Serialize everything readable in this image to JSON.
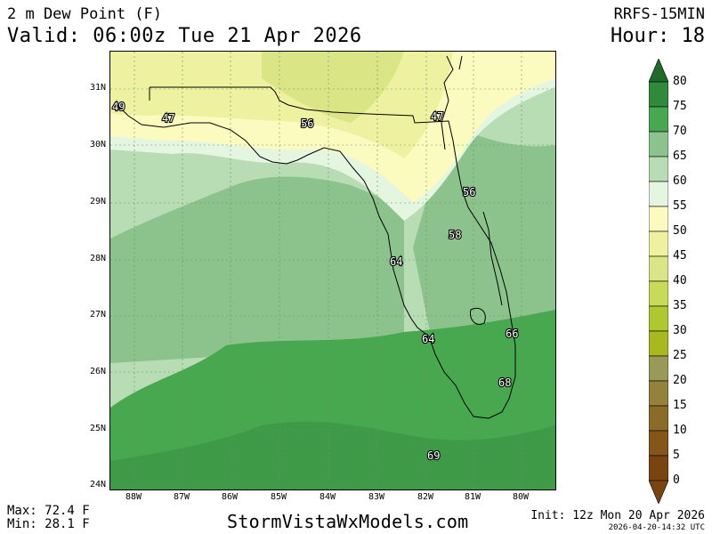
{
  "header": {
    "title": "2 m Dew Point (F)",
    "valid": "Valid: 06:00z Tue 21 Apr 2026",
    "model": "RRFS-15MIN",
    "hour": "Hour: 18"
  },
  "map": {
    "lat_labels": [
      "31N",
      "30N",
      "29N",
      "28N",
      "27N",
      "26N",
      "25N",
      "24N"
    ],
    "lon_labels": [
      "88W",
      "87W",
      "86W",
      "85W",
      "84W",
      "83W",
      "82W",
      "81W",
      "80W"
    ],
    "point_labels": [
      "49",
      "47",
      "56",
      "47",
      "56",
      "58",
      "64",
      "64",
      "66",
      "68",
      "69"
    ]
  },
  "colorbar": {
    "levels": [
      "80",
      "75",
      "70",
      "65",
      "60",
      "55",
      "50",
      "45",
      "40",
      "35",
      "30",
      "25",
      "20",
      "15",
      "10",
      "5",
      "0"
    ],
    "colors": [
      "#1e6b2a",
      "#2f8a3c",
      "#47a84f",
      "#8cc38c",
      "#b8dcb4",
      "#e4f5e0",
      "#fbfbc0",
      "#eef2a0",
      "#dae685",
      "#c8da5a",
      "#b0c830",
      "#a8b820",
      "#9a9a58",
      "#94823c",
      "#8c6a28",
      "#84561a",
      "#7a4410"
    ]
  },
  "footer": {
    "max": "Max: 72.4 F",
    "min": "Min: 28.1 F",
    "site": "StormVistaWxModels.com",
    "init": "Init: 12z Mon 20 Apr 2026",
    "stamp": "2026-04-20-14:32 UTC"
  }
}
